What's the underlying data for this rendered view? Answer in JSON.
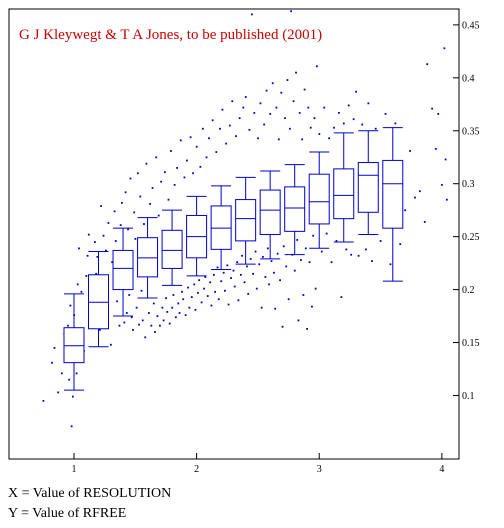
{
  "captions": {
    "x": "X = Value of RESOLUTION",
    "y": "Y = Value of RFREE"
  },
  "chart_data": {
    "type": "box",
    "credit": "G J Kleywegt & T A Jones, to be published (2001)",
    "xlabel": "",
    "ylabel": "",
    "xlim": [
      0.47,
      4.14
    ],
    "ylim": [
      0.04,
      0.465
    ],
    "x_ticks": [
      1,
      2,
      3,
      4
    ],
    "x_tick_labels": [
      "1",
      "2",
      "3",
      "4"
    ],
    "y_ticks": [
      0.1,
      0.15,
      0.2,
      0.25,
      0.3,
      0.35,
      0.4,
      0.45
    ],
    "y_tick_labels": [
      "0.1",
      "0.15",
      "0.2",
      "0.25",
      "0.3",
      "0.35",
      "0.4",
      "0.45"
    ],
    "y_axis_side": "right",
    "grid": false,
    "colors": {
      "points": "#0000cc",
      "boxes": "#0000cc",
      "credit": "#cc0000",
      "axes": "#000000"
    },
    "boxes": [
      {
        "x": 1.0,
        "whislo": 0.105,
        "q1": 0.131,
        "med": 0.147,
        "q3": 0.164,
        "whishi": 0.196
      },
      {
        "x": 1.2,
        "whislo": 0.146,
        "q1": 0.163,
        "med": 0.188,
        "q3": 0.214,
        "whishi": 0.236
      },
      {
        "x": 1.4,
        "whislo": 0.175,
        "q1": 0.2,
        "med": 0.22,
        "q3": 0.237,
        "whishi": 0.258
      },
      {
        "x": 1.6,
        "whislo": 0.192,
        "q1": 0.212,
        "med": 0.23,
        "q3": 0.249,
        "whishi": 0.268
      },
      {
        "x": 1.8,
        "whislo": 0.204,
        "q1": 0.22,
        "med": 0.237,
        "q3": 0.256,
        "whishi": 0.275
      },
      {
        "x": 2.0,
        "whislo": 0.213,
        "q1": 0.23,
        "med": 0.25,
        "q3": 0.27,
        "whishi": 0.288
      },
      {
        "x": 2.2,
        "whislo": 0.219,
        "q1": 0.238,
        "med": 0.258,
        "q3": 0.279,
        "whishi": 0.298
      },
      {
        "x": 2.4,
        "whislo": 0.224,
        "q1": 0.246,
        "med": 0.267,
        "q3": 0.285,
        "whishi": 0.306
      },
      {
        "x": 2.6,
        "whislo": 0.229,
        "q1": 0.252,
        "med": 0.275,
        "q3": 0.294,
        "whishi": 0.312
      },
      {
        "x": 2.8,
        "whislo": 0.233,
        "q1": 0.255,
        "med": 0.277,
        "q3": 0.297,
        "whishi": 0.318
      },
      {
        "x": 3.0,
        "whislo": 0.239,
        "q1": 0.262,
        "med": 0.283,
        "q3": 0.309,
        "whishi": 0.33
      },
      {
        "x": 3.2,
        "whislo": 0.245,
        "q1": 0.267,
        "med": 0.289,
        "q3": 0.314,
        "whishi": 0.348
      },
      {
        "x": 3.4,
        "whislo": 0.252,
        "q1": 0.273,
        "med": 0.308,
        "q3": 0.32,
        "whishi": 0.35
      },
      {
        "x": 3.6,
        "whislo": 0.208,
        "q1": 0.258,
        "med": 0.3,
        "q3": 0.322,
        "whishi": 0.353
      }
    ],
    "points": [
      [
        0.75,
        0.095
      ],
      [
        0.82,
        0.131
      ],
      [
        0.84,
        0.145
      ],
      [
        0.87,
        0.103
      ],
      [
        0.9,
        0.121
      ],
      [
        0.92,
        0.158
      ],
      [
        0.94,
        0.139
      ],
      [
        0.95,
        0.166
      ],
      [
        0.96,
        0.115
      ],
      [
        0.97,
        0.185
      ],
      [
        0.98,
        0.071
      ],
      [
        0.99,
        0.099
      ],
      [
        1.0,
        0.176
      ],
      [
        1.02,
        0.121
      ],
      [
        1.03,
        0.205
      ],
      [
        1.04,
        0.239
      ],
      [
        1.05,
        0.154
      ],
      [
        1.06,
        0.198
      ],
      [
        1.08,
        0.142
      ],
      [
        1.1,
        0.213
      ],
      [
        1.11,
        0.232
      ],
      [
        1.12,
        0.252
      ],
      [
        1.13,
        0.188
      ],
      [
        1.15,
        0.168
      ],
      [
        1.17,
        0.245
      ],
      [
        1.18,
        0.215
      ],
      [
        1.19,
        0.231
      ],
      [
        1.21,
        0.162
      ],
      [
        1.22,
        0.279
      ],
      [
        1.24,
        0.251
      ],
      [
        1.25,
        0.204
      ],
      [
        1.26,
        0.237
      ],
      [
        1.27,
        0.172
      ],
      [
        1.28,
        0.263
      ],
      [
        1.3,
        0.148
      ],
      [
        1.31,
        0.226
      ],
      [
        1.33,
        0.274
      ],
      [
        1.34,
        0.246
      ],
      [
        1.35,
        0.189
      ],
      [
        1.36,
        0.207
      ],
      [
        1.37,
        0.166
      ],
      [
        1.38,
        0.261
      ],
      [
        1.39,
        0.282
      ],
      [
        1.41,
        0.169
      ],
      [
        1.42,
        0.292
      ],
      [
        1.43,
        0.178
      ],
      [
        1.44,
        0.257
      ],
      [
        1.45,
        0.195
      ],
      [
        1.46,
        0.305
      ],
      [
        1.47,
        0.174
      ],
      [
        1.48,
        0.162
      ],
      [
        1.49,
        0.273
      ],
      [
        1.5,
        0.248
      ],
      [
        1.51,
        0.183
      ],
      [
        1.52,
        0.31
      ],
      [
        1.53,
        0.167
      ],
      [
        1.54,
        0.288
      ],
      [
        1.55,
        0.199
      ],
      [
        1.56,
        0.171
      ],
      [
        1.57,
        0.262
      ],
      [
        1.58,
        0.155
      ],
      [
        1.59,
        0.319
      ],
      [
        1.61,
        0.178
      ],
      [
        1.62,
        0.281
      ],
      [
        1.63,
        0.166
      ],
      [
        1.64,
        0.296
      ],
      [
        1.65,
        0.187
      ],
      [
        1.66,
        0.16
      ],
      [
        1.67,
        0.325
      ],
      [
        1.68,
        0.175
      ],
      [
        1.69,
        0.27
      ],
      [
        1.7,
        0.166
      ],
      [
        1.71,
        0.302
      ],
      [
        1.72,
        0.183
      ],
      [
        1.73,
        0.171
      ],
      [
        1.74,
        0.311
      ],
      [
        1.75,
        0.192
      ],
      [
        1.76,
        0.179
      ],
      [
        1.77,
        0.285
      ],
      [
        1.78,
        0.168
      ],
      [
        1.79,
        0.331
      ],
      [
        1.8,
        0.183
      ],
      [
        1.81,
        0.195
      ],
      [
        1.82,
        0.299
      ],
      [
        1.83,
        0.174
      ],
      [
        1.84,
        0.315
      ],
      [
        1.85,
        0.187
      ],
      [
        1.86,
        0.178
      ],
      [
        1.87,
        0.341
      ],
      [
        1.88,
        0.198
      ],
      [
        1.89,
        0.191
      ],
      [
        1.9,
        0.306
      ],
      [
        1.91,
        0.176
      ],
      [
        1.92,
        0.322
      ],
      [
        1.93,
        0.202
      ],
      [
        1.94,
        0.183
      ],
      [
        1.95,
        0.344
      ],
      [
        1.96,
        0.193
      ],
      [
        1.97,
        0.31
      ],
      [
        1.98,
        0.205
      ],
      [
        1.99,
        0.181
      ],
      [
        2.0,
        0.335
      ],
      [
        2.01,
        0.197
      ],
      [
        2.02,
        0.209
      ],
      [
        2.03,
        0.316
      ],
      [
        2.04,
        0.188
      ],
      [
        2.05,
        0.352
      ],
      [
        2.06,
        0.201
      ],
      [
        2.07,
        0.212
      ],
      [
        2.08,
        0.325
      ],
      [
        2.09,
        0.194
      ],
      [
        2.1,
        0.343
      ],
      [
        2.11,
        0.207
      ],
      [
        2.12,
        0.185
      ],
      [
        2.13,
        0.36
      ],
      [
        2.14,
        0.214
      ],
      [
        2.15,
        0.198
      ],
      [
        2.16,
        0.33
      ],
      [
        2.17,
        0.221
      ],
      [
        2.18,
        0.191
      ],
      [
        2.19,
        0.352
      ],
      [
        2.2,
        0.208
      ],
      [
        2.21,
        0.37
      ],
      [
        2.22,
        0.216
      ],
      [
        2.23,
        0.199
      ],
      [
        2.24,
        0.338
      ],
      [
        2.25,
        0.223
      ],
      [
        2.26,
        0.186
      ],
      [
        2.27,
        0.355
      ],
      [
        2.28,
        0.211
      ],
      [
        2.29,
        0.378
      ],
      [
        2.3,
        0.218
      ],
      [
        2.31,
        0.203
      ],
      [
        2.32,
        0.345
      ],
      [
        2.33,
        0.226
      ],
      [
        2.34,
        0.19
      ],
      [
        2.35,
        0.362
      ],
      [
        2.36,
        0.214
      ],
      [
        2.37,
        0.232
      ],
      [
        2.38,
        0.372
      ],
      [
        2.39,
        0.207
      ],
      [
        2.4,
        0.382
      ],
      [
        2.41,
        0.222
      ],
      [
        2.42,
        0.196
      ],
      [
        2.43,
        0.351
      ],
      [
        2.44,
        0.229
      ],
      [
        2.45,
        0.46
      ],
      [
        2.46,
        0.215
      ],
      [
        2.47,
        0.367
      ],
      [
        2.48,
        0.236
      ],
      [
        2.49,
        0.201
      ],
      [
        2.5,
        0.343
      ],
      [
        2.51,
        0.224
      ],
      [
        2.52,
        0.376
      ],
      [
        2.53,
        0.183
      ],
      [
        2.54,
        0.231
      ],
      [
        2.55,
        0.356
      ],
      [
        2.56,
        0.212
      ],
      [
        2.57,
        0.388
      ],
      [
        2.58,
        0.239
      ],
      [
        2.59,
        0.205
      ],
      [
        2.6,
        0.366
      ],
      [
        2.61,
        0.227
      ],
      [
        2.62,
        0.395
      ],
      [
        2.63,
        0.216
      ],
      [
        2.64,
        0.182
      ],
      [
        2.65,
        0.372
      ],
      [
        2.66,
        0.234
      ],
      [
        2.67,
        0.342
      ],
      [
        2.68,
        0.209
      ],
      [
        2.69,
        0.386
      ],
      [
        2.7,
        0.165
      ],
      [
        2.71,
        0.241
      ],
      [
        2.72,
        0.362
      ],
      [
        2.73,
        0.222
      ],
      [
        2.74,
        0.398
      ],
      [
        2.75,
        0.191
      ],
      [
        2.76,
        0.352
      ],
      [
        2.77,
        0.463
      ],
      [
        2.78,
        0.233
      ],
      [
        2.79,
        0.378
      ],
      [
        2.8,
        0.218
      ],
      [
        2.81,
        0.405
      ],
      [
        2.82,
        0.247
      ],
      [
        2.83,
        0.171
      ],
      [
        2.84,
        0.367
      ],
      [
        2.85,
        0.228
      ],
      [
        2.86,
        0.342
      ],
      [
        2.87,
        0.195
      ],
      [
        2.88,
        0.389
      ],
      [
        2.89,
        0.239
      ],
      [
        2.9,
        0.163
      ],
      [
        2.91,
        0.372
      ],
      [
        2.92,
        0.226
      ],
      [
        2.93,
        0.353
      ],
      [
        2.94,
        0.184
      ],
      [
        2.95,
        0.251
      ],
      [
        2.96,
        0.362
      ],
      [
        2.97,
        0.201
      ],
      [
        2.98,
        0.411
      ],
      [
        3.0,
        0.347
      ],
      [
        3.02,
        0.236
      ],
      [
        3.04,
        0.372
      ],
      [
        3.06,
        0.253
      ],
      [
        3.08,
        0.343
      ],
      [
        3.1,
        0.226
      ],
      [
        3.12,
        0.353
      ],
      [
        3.14,
        0.246
      ],
      [
        3.16,
        0.367
      ],
      [
        3.18,
        0.193
      ],
      [
        3.2,
        0.357
      ],
      [
        3.22,
        0.238
      ],
      [
        3.24,
        0.374
      ],
      [
        3.26,
        0.233
      ],
      [
        3.28,
        0.361
      ],
      [
        3.3,
        0.387
      ],
      [
        3.32,
        0.232
      ],
      [
        3.35,
        0.356
      ],
      [
        3.38,
        0.238
      ],
      [
        3.4,
        0.376
      ],
      [
        3.43,
        0.227
      ],
      [
        3.46,
        0.352
      ],
      [
        3.5,
        0.246
      ],
      [
        3.54,
        0.366
      ],
      [
        3.58,
        0.224
      ],
      [
        3.62,
        0.357
      ],
      [
        3.66,
        0.243
      ],
      [
        3.7,
        0.275
      ],
      [
        3.74,
        0.331
      ],
      [
        3.78,
        0.287
      ],
      [
        3.82,
        0.293
      ],
      [
        3.86,
        0.264
      ],
      [
        3.88,
        0.413
      ],
      [
        3.92,
        0.371
      ],
      [
        3.95,
        0.333
      ],
      [
        3.97,
        0.366
      ],
      [
        4.0,
        0.299
      ],
      [
        4.02,
        0.428
      ],
      [
        4.03,
        0.323
      ],
      [
        4.04,
        0.285
      ]
    ]
  }
}
